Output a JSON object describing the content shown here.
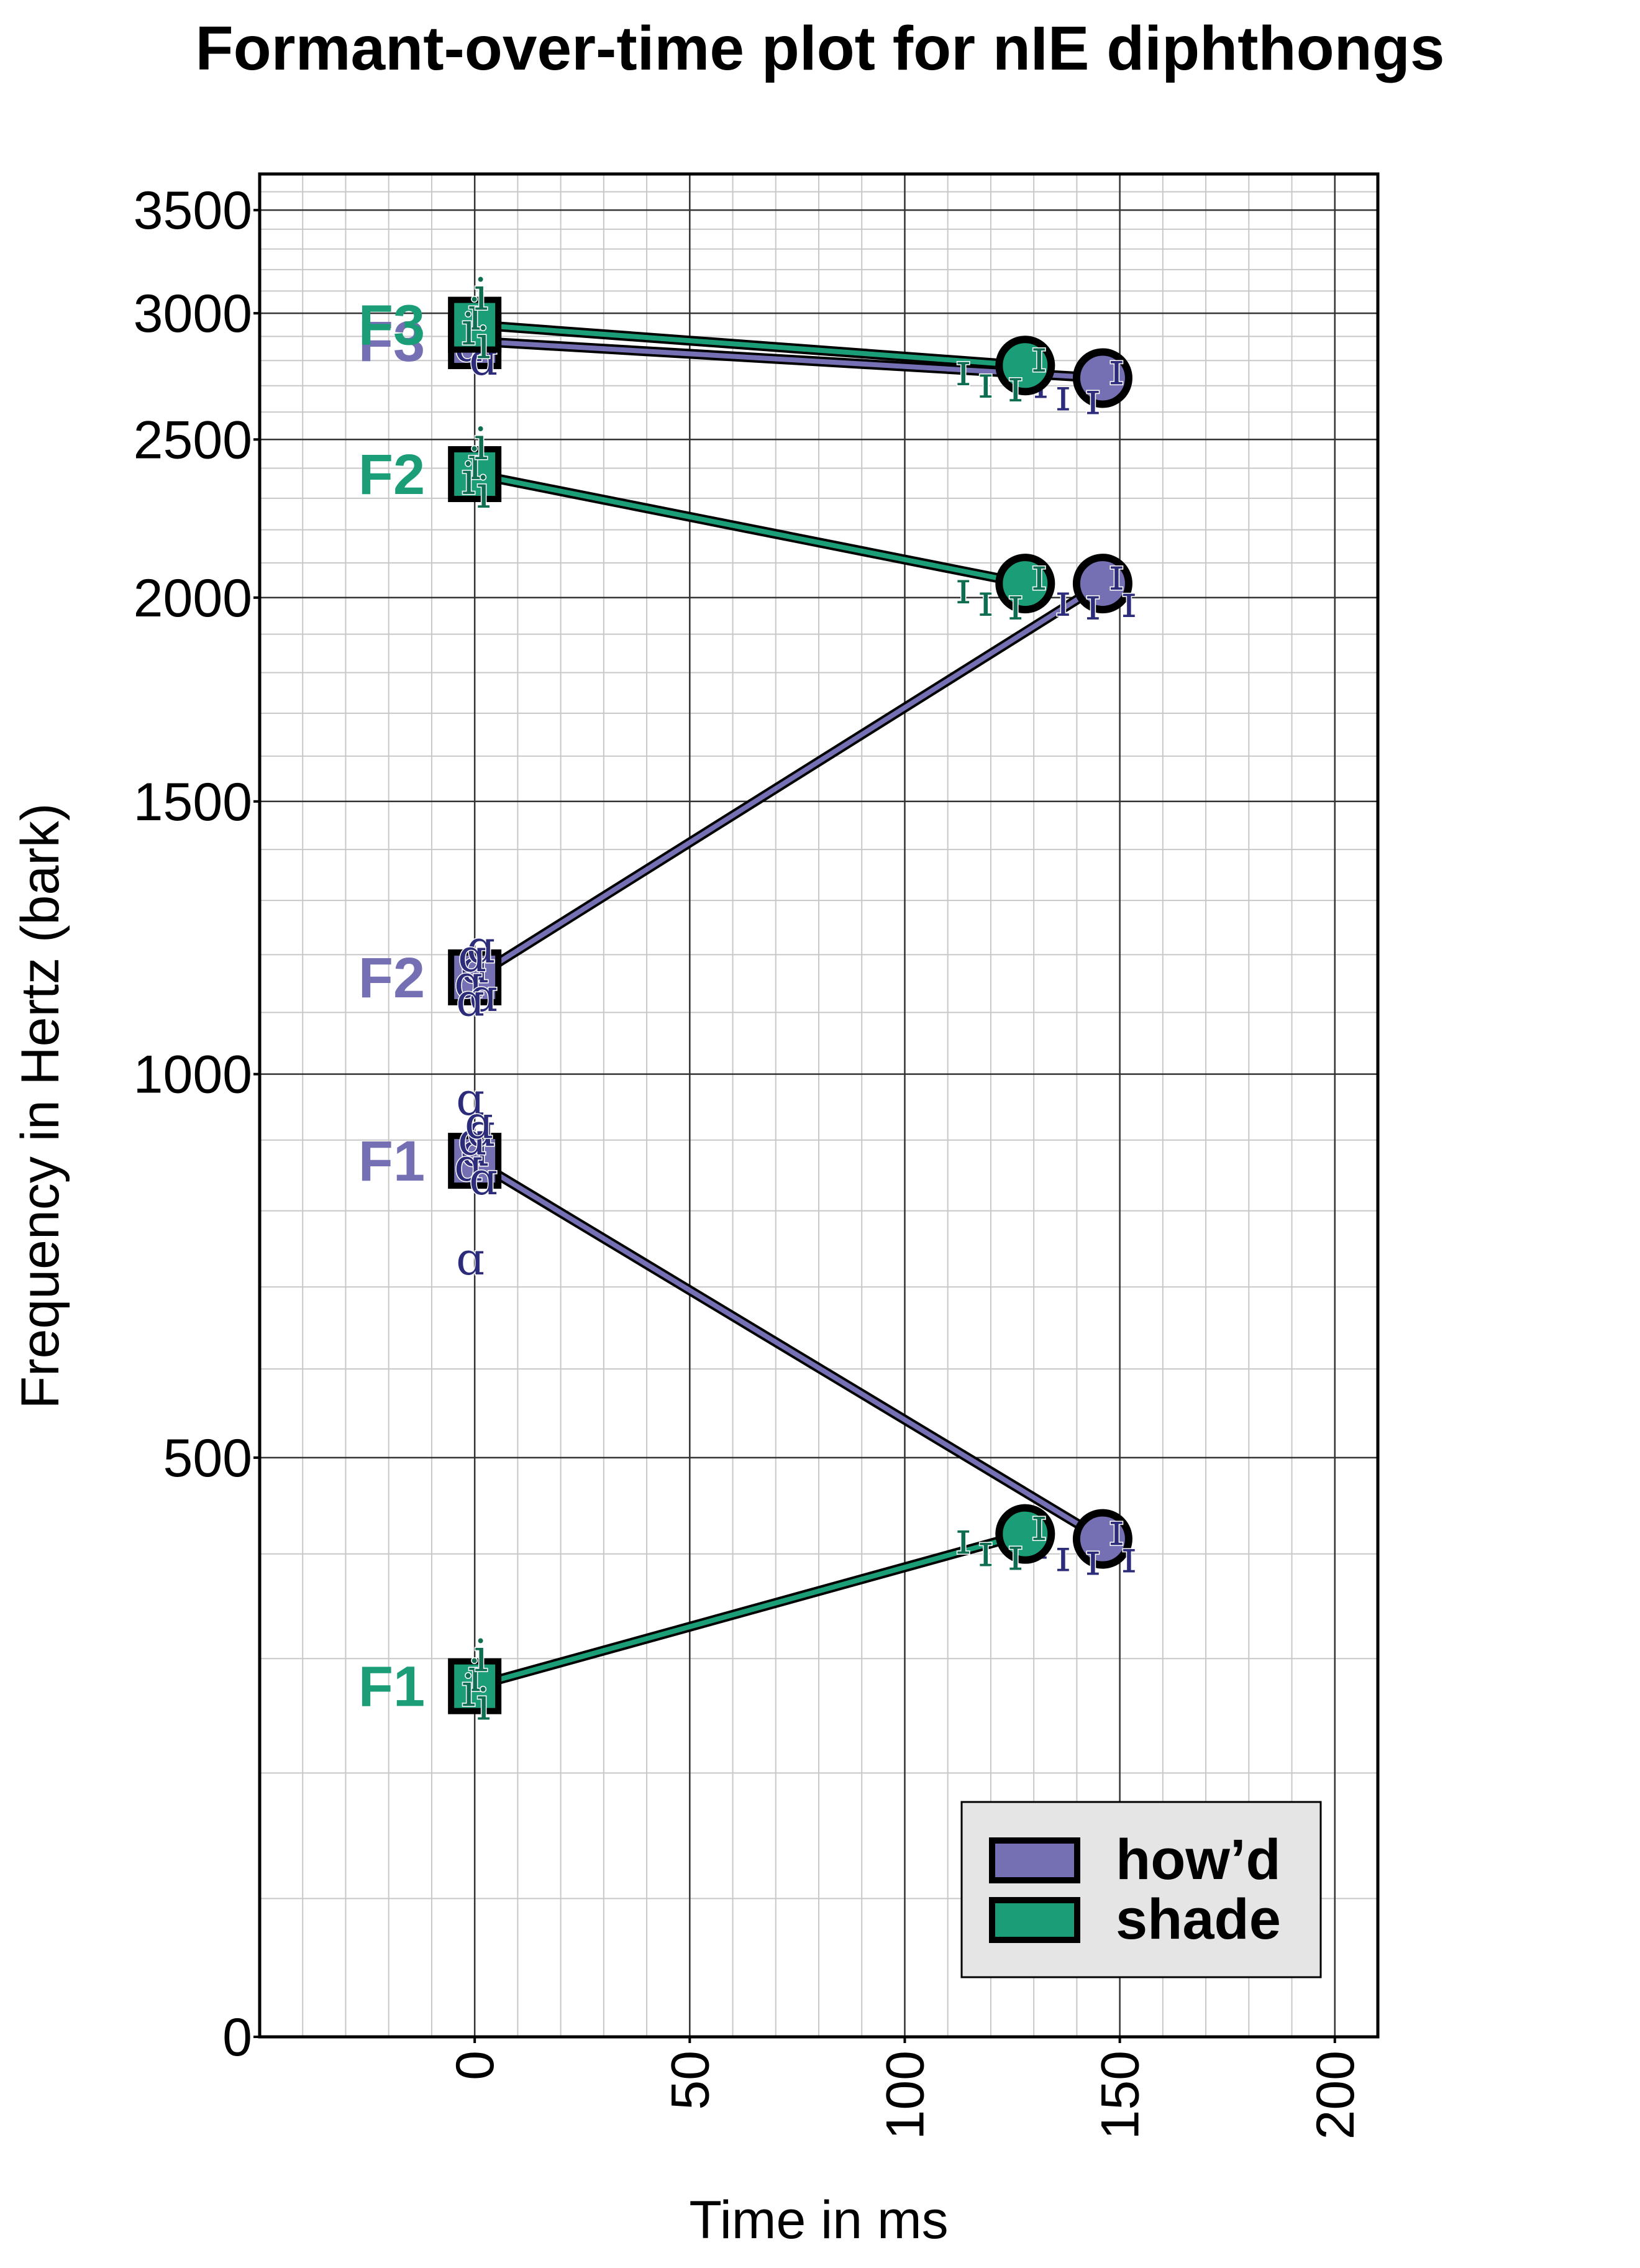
{
  "chart_data": {
    "type": "line",
    "title": "Formant-over-time plot for nIE diphthongs",
    "xlabel": "Time in ms",
    "ylabel": "Frequency in Hertz (bark)",
    "x_ticks": [
      "0",
      "50",
      "100",
      "150",
      "200"
    ],
    "y_ticks": [
      "0",
      "500",
      "1000",
      "1500",
      "2000",
      "2500",
      "3000",
      "3500"
    ],
    "xlim": [
      -50,
      210
    ],
    "y_scale": "bark",
    "ylim": [
      0,
      3700
    ],
    "grid": true,
    "legend_position": "bottom-right",
    "colors": {
      "howd": "#7570b3",
      "shade": "#1b9e77",
      "howd_token": "#2c2c7a",
      "shade_token": "#0f6e52"
    },
    "series": [
      {
        "name": "how'd",
        "color": "#7570b3",
        "formant": "F1",
        "x": [
          0,
          146
        ],
        "y": [
          870,
          415
        ],
        "start_tokens": [
          "ɑ",
          "ɑ",
          "ɑ",
          "ɑ",
          "ɑ"
        ],
        "end_tokens": [
          "ɪ",
          "ɪ",
          "ɪ",
          "ɪ",
          "ɪ"
        ]
      },
      {
        "name": "how'd",
        "color": "#7570b3",
        "formant": "F2",
        "x": [
          0,
          146
        ],
        "y": [
          1160,
          2040
        ],
        "start_tokens": [
          "ɑ",
          "ɑ",
          "ɑ",
          "ɑ",
          "ɑ"
        ],
        "end_tokens": [
          "ɪ",
          "ɪ",
          "ɪ",
          "ɪ",
          "ɪ"
        ]
      },
      {
        "name": "how'd",
        "color": "#7570b3",
        "formant": "F3",
        "x": [
          0,
          146
        ],
        "y": [
          2880,
          2730
        ],
        "start_tokens": [
          "ɑ",
          "ɑ",
          "ɑ",
          "ɑ"
        ],
        "end_tokens": [
          "ɪ",
          "ɪ",
          "ɪ",
          "ɪ"
        ]
      },
      {
        "name": "shade",
        "color": "#1b9e77",
        "formant": "F1",
        "x": [
          0,
          128
        ],
        "y": [
          275,
          420
        ],
        "start_tokens": [
          "i",
          "i",
          "i",
          "i"
        ],
        "end_tokens": [
          "ɪ",
          "ɪ",
          "ɪ",
          "ɪ"
        ]
      },
      {
        "name": "shade",
        "color": "#1b9e77",
        "formant": "F2",
        "x": [
          0,
          128
        ],
        "y": [
          2380,
          2040
        ],
        "start_tokens": [
          "i",
          "i",
          "i",
          "i"
        ],
        "end_tokens": [
          "ɪ",
          "ɪ",
          "ɪ",
          "ɪ"
        ]
      },
      {
        "name": "shade",
        "color": "#1b9e77",
        "formant": "F3",
        "x": [
          0,
          128
        ],
        "y": [
          2950,
          2780
        ],
        "start_tokens": [
          "i",
          "i",
          "i",
          "i"
        ],
        "end_tokens": [
          "ɪ",
          "ɪ",
          "ɪ",
          "ɪ"
        ]
      }
    ],
    "loose_tokens": [
      {
        "series": "how'd",
        "text": "ɑ",
        "x": -1,
        "y": 1120
      },
      {
        "series": "how'd",
        "text": "ɑ",
        "x": -1,
        "y": 960
      },
      {
        "series": "how'd",
        "text": "ɑ",
        "x": 1,
        "y": 925
      },
      {
        "series": "how'd",
        "text": "ɑ",
        "x": -1,
        "y": 735
      }
    ],
    "legend": [
      {
        "label": "how’d",
        "color": "#7570b3"
      },
      {
        "label": "shade",
        "color": "#1b9e77"
      }
    ]
  }
}
